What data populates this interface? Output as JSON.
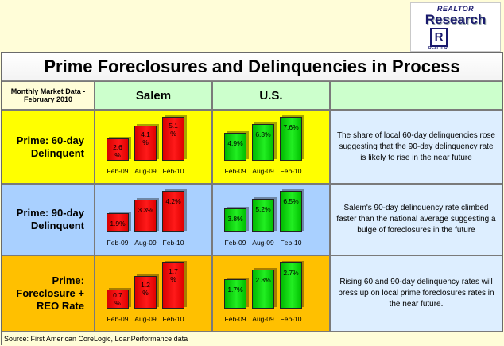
{
  "logo": {
    "line1": "REALTOR",
    "line2": "Research",
    "mark": "R",
    "line3": "REALTOR"
  },
  "title": "Prime Foreclosures and Delinquencies in Process",
  "header": {
    "left": "Monthly Market Data - February 2010",
    "col1": "Salem",
    "col2": "U.S."
  },
  "colors": {
    "salem_bar": "#ff0000",
    "us_bar": "#00dd00"
  },
  "rows": [
    {
      "label": "Prime: 60-day Delinquent",
      "note": "The share of local 60-day delinquencies rose suggesting that the 90-day delinquency rate is likely to rise in the near future",
      "bg": "#ffff00"
    },
    {
      "label": "Prime: 90-day Delinquent",
      "note": "Salem's 90-day delinquency rate climbed faster than the national average suggesting a bulge of foreclosures in the future",
      "bg": "#a9d0ff"
    },
    {
      "label": "Prime: Foreclosure + REO Rate",
      "note": "Rising 60 and 90-day delinquency rates will press up on local prime foreclosures rates in the near future.",
      "bg": "#ffc000"
    }
  ],
  "chart_data": [
    {
      "type": "bar",
      "categories": [
        "Feb-09",
        "Aug-09",
        "Feb-10"
      ],
      "values": [
        2.6,
        4.1,
        5.1
      ],
      "labels": [
        "2.6 %",
        "4.1 %",
        "5.1 %"
      ]
    },
    {
      "type": "bar",
      "categories": [
        "Feb-09",
        "Aug-09",
        "Feb-10"
      ],
      "values": [
        4.9,
        6.3,
        7.6
      ],
      "labels": [
        "4.9%",
        "6.3%",
        "7.6%"
      ]
    },
    {
      "type": "bar",
      "categories": [
        "Feb-09",
        "Aug-09",
        "Feb-10"
      ],
      "values": [
        1.9,
        3.3,
        4.2
      ],
      "labels": [
        "1.9%",
        "3.3%",
        "4.2%"
      ]
    },
    {
      "type": "bar",
      "categories": [
        "Feb-09",
        "Aug-09",
        "Feb-10"
      ],
      "values": [
        3.8,
        5.2,
        6.5
      ],
      "labels": [
        "3.8%",
        "5.2%",
        "6.5%"
      ]
    },
    {
      "type": "bar",
      "categories": [
        "Feb-09",
        "Aug-09",
        "Feb-10"
      ],
      "values": [
        0.7,
        1.2,
        1.7
      ],
      "labels": [
        "0.7 %",
        "1.2 %",
        "1.7 %"
      ]
    },
    {
      "type": "bar",
      "categories": [
        "Feb-09",
        "Aug-09",
        "Feb-10"
      ],
      "values": [
        1.7,
        2.3,
        2.7
      ],
      "labels": [
        "1.7%",
        "2.3%",
        "2.7%"
      ]
    }
  ],
  "source": "Source: First American CoreLogic, LoanPerformance data"
}
